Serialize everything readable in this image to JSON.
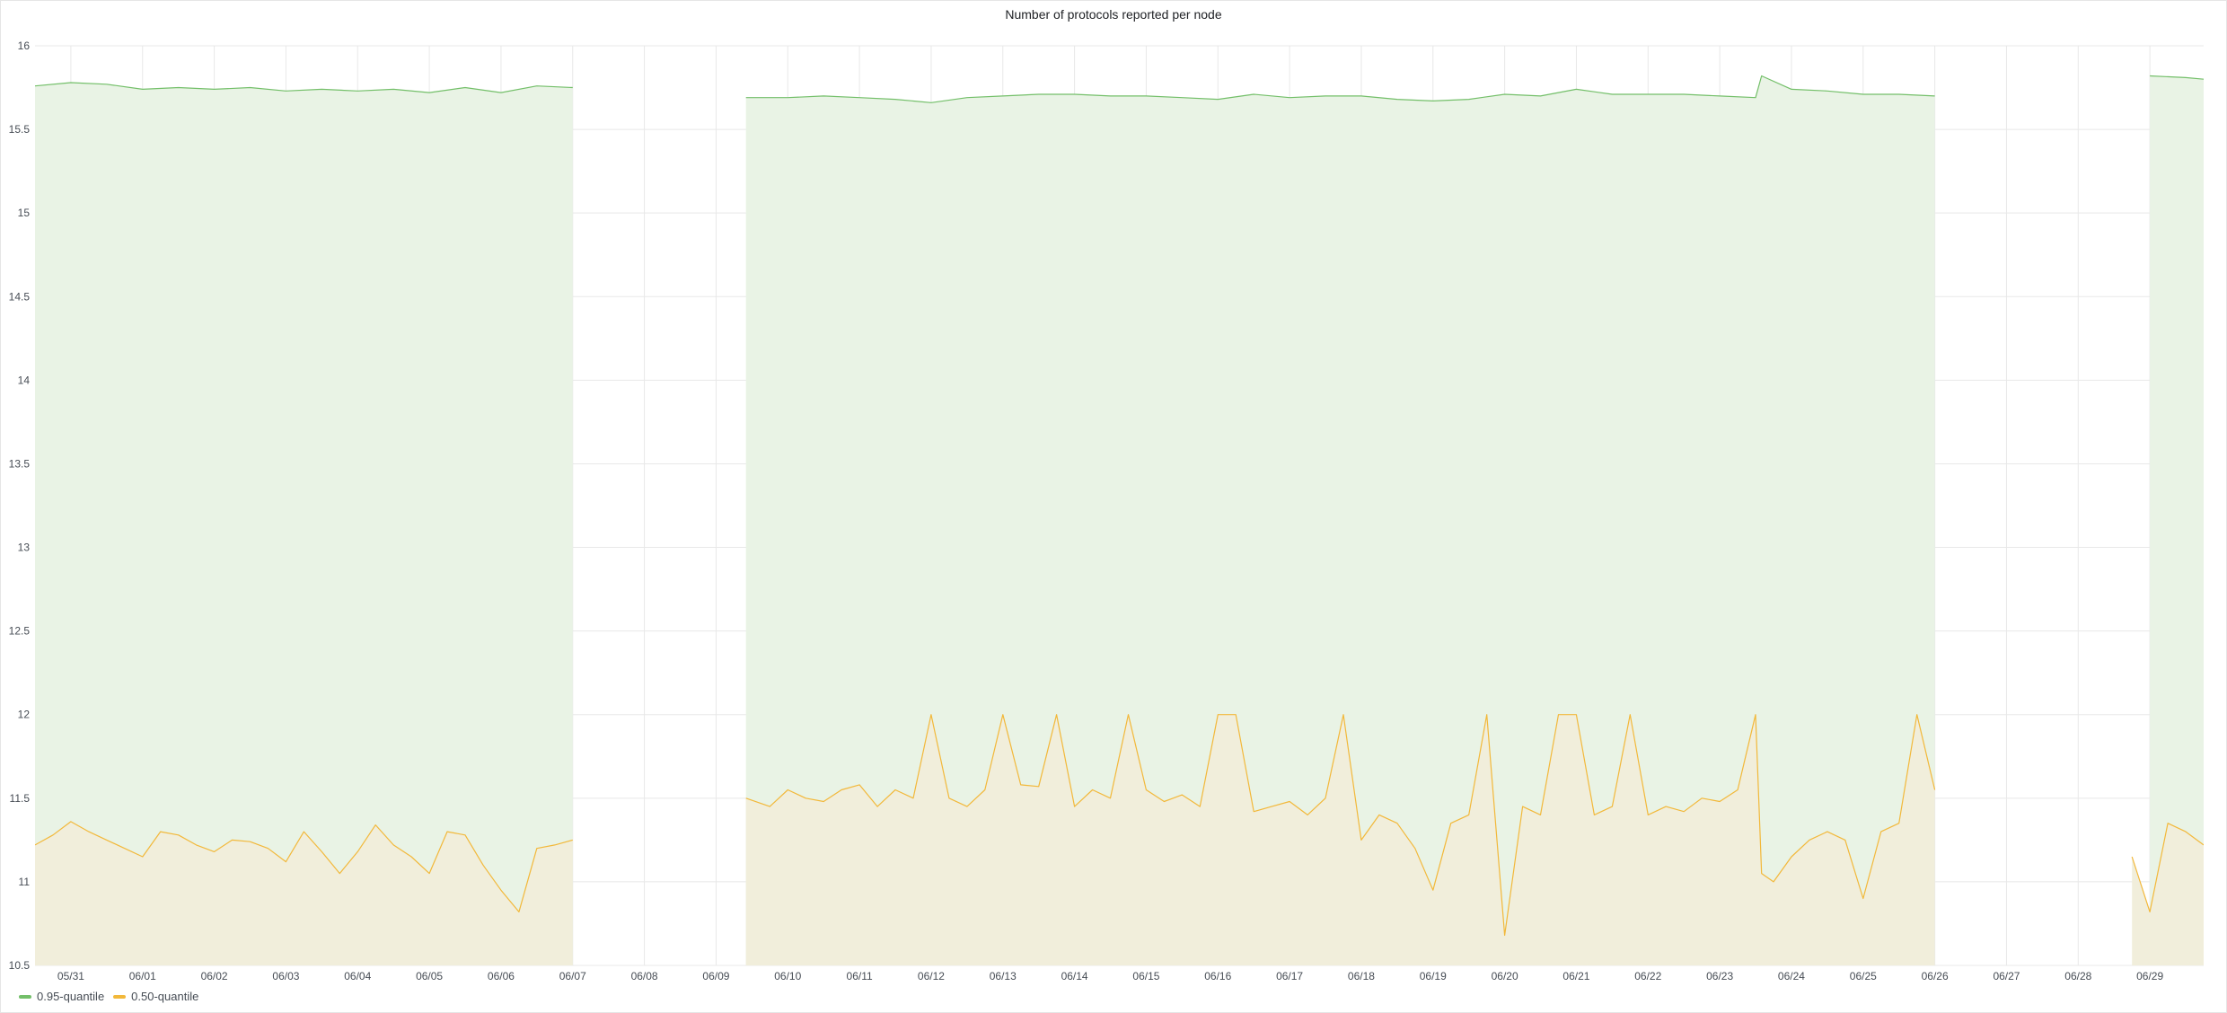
{
  "panel": {
    "title": "Number of protocols reported per node"
  },
  "colors": {
    "series_095": "#73bf69",
    "series_050": "#f2b83a",
    "fill_095": "#e9f3e5",
    "fill_050": "#f1eedb",
    "grid": "#e8e8e8",
    "axis_text": "#464c54"
  },
  "chart_data": {
    "type": "area",
    "title": "Number of protocols reported per node",
    "xlabel": "",
    "ylabel": "",
    "x_start": "05/30 12:00",
    "x_end": "06/29 18:00",
    "ylim": [
      10.5,
      16
    ],
    "y_ticks": [
      "10.5",
      "11",
      "11.5",
      "12",
      "12.5",
      "13",
      "13.5",
      "14",
      "14.5",
      "15",
      "15.5",
      "16"
    ],
    "x_tick_labels": [
      "05/31",
      "06/01",
      "06/02",
      "06/03",
      "06/04",
      "06/05",
      "06/06",
      "06/07",
      "06/08",
      "06/09",
      "06/10",
      "06/11",
      "06/12",
      "06/13",
      "06/14",
      "06/15",
      "06/16",
      "06/17",
      "06/18",
      "06/19",
      "06/20",
      "06/21",
      "06/22",
      "06/23",
      "06/24",
      "06/25",
      "06/26",
      "06/27",
      "06/28",
      "06/29"
    ],
    "grid": true,
    "legend_position": "bottom-left",
    "data_gaps": [
      [
        "06/07 00:00",
        "06/09 10:00"
      ],
      [
        "06/28 12:00",
        "06/28 12:00"
      ]
    ],
    "series": [
      {
        "name": "0.95-quantile",
        "color": "#73bf69",
        "fill": true,
        "points": [
          [
            "05/30 12:00",
            15.76
          ],
          [
            "05/31 00:00",
            15.78
          ],
          [
            "05/31 12:00",
            15.77
          ],
          [
            "06/01 00:00",
            15.74
          ],
          [
            "06/01 12:00",
            15.75
          ],
          [
            "06/02 00:00",
            15.74
          ],
          [
            "06/02 12:00",
            15.75
          ],
          [
            "06/03 00:00",
            15.73
          ],
          [
            "06/03 12:00",
            15.74
          ],
          [
            "06/04 00:00",
            15.73
          ],
          [
            "06/04 12:00",
            15.74
          ],
          [
            "06/05 00:00",
            15.72
          ],
          [
            "06/05 12:00",
            15.75
          ],
          [
            "06/06 00:00",
            15.72
          ],
          [
            "06/06 12:00",
            15.76
          ],
          [
            "06/07 00:00",
            15.75
          ],
          [
            "06/09 10:00",
            15.69
          ],
          [
            "06/10 00:00",
            15.69
          ],
          [
            "06/10 12:00",
            15.7
          ],
          [
            "06/11 00:00",
            15.69
          ],
          [
            "06/11 12:00",
            15.68
          ],
          [
            "06/12 00:00",
            15.66
          ],
          [
            "06/12 12:00",
            15.69
          ],
          [
            "06/13 00:00",
            15.7
          ],
          [
            "06/13 12:00",
            15.71
          ],
          [
            "06/14 00:00",
            15.71
          ],
          [
            "06/14 12:00",
            15.7
          ],
          [
            "06/15 00:00",
            15.7
          ],
          [
            "06/15 12:00",
            15.69
          ],
          [
            "06/16 00:00",
            15.68
          ],
          [
            "06/16 12:00",
            15.71
          ],
          [
            "06/17 00:00",
            15.69
          ],
          [
            "06/17 12:00",
            15.7
          ],
          [
            "06/18 00:00",
            15.7
          ],
          [
            "06/18 12:00",
            15.68
          ],
          [
            "06/19 00:00",
            15.67
          ],
          [
            "06/19 12:00",
            15.68
          ],
          [
            "06/20 00:00",
            15.71
          ],
          [
            "06/20 12:00",
            15.7
          ],
          [
            "06/21 00:00",
            15.74
          ],
          [
            "06/21 12:00",
            15.71
          ],
          [
            "06/22 00:00",
            15.71
          ],
          [
            "06/22 12:00",
            15.71
          ],
          [
            "06/23 00:00",
            15.7
          ],
          [
            "06/23 12:00",
            15.69
          ],
          [
            "06/23 14:00",
            15.82
          ],
          [
            "06/24 00:00",
            15.74
          ],
          [
            "06/24 12:00",
            15.73
          ],
          [
            "06/25 00:00",
            15.71
          ],
          [
            "06/25 12:00",
            15.71
          ],
          [
            "06/26 00:00",
            15.7
          ],
          [
            "06/28 12:00",
            15.88
          ],
          [
            "06/29 00:00",
            15.82
          ],
          [
            "06/29 12:00",
            15.81
          ],
          [
            "06/29 18:00",
            15.8
          ]
        ]
      },
      {
        "name": "0.50-quantile",
        "color": "#f2b83a",
        "fill": true,
        "points": [
          [
            "05/30 12:00",
            11.22
          ],
          [
            "05/30 18:00",
            11.28
          ],
          [
            "05/31 00:00",
            11.36
          ],
          [
            "05/31 06:00",
            11.3
          ],
          [
            "05/31 12:00",
            11.25
          ],
          [
            "05/31 18:00",
            11.2
          ],
          [
            "06/01 00:00",
            11.15
          ],
          [
            "06/01 06:00",
            11.3
          ],
          [
            "06/01 12:00",
            11.28
          ],
          [
            "06/01 18:00",
            11.22
          ],
          [
            "06/02 00:00",
            11.18
          ],
          [
            "06/02 06:00",
            11.25
          ],
          [
            "06/02 12:00",
            11.24
          ],
          [
            "06/02 18:00",
            11.2
          ],
          [
            "06/03 00:00",
            11.12
          ],
          [
            "06/03 06:00",
            11.3
          ],
          [
            "06/03 12:00",
            11.18
          ],
          [
            "06/03 18:00",
            11.05
          ],
          [
            "06/04 00:00",
            11.18
          ],
          [
            "06/04 06:00",
            11.34
          ],
          [
            "06/04 12:00",
            11.22
          ],
          [
            "06/04 18:00",
            11.15
          ],
          [
            "06/05 00:00",
            11.05
          ],
          [
            "06/05 06:00",
            11.3
          ],
          [
            "06/05 12:00",
            11.28
          ],
          [
            "06/05 18:00",
            11.1
          ],
          [
            "06/06 00:00",
            10.95
          ],
          [
            "06/06 06:00",
            10.82
          ],
          [
            "06/06 12:00",
            11.2
          ],
          [
            "06/06 18:00",
            11.22
          ],
          [
            "06/07 00:00",
            11.25
          ],
          [
            "06/09 10:00",
            11.5
          ],
          [
            "06/09 18:00",
            11.45
          ],
          [
            "06/10 00:00",
            11.55
          ],
          [
            "06/10 06:00",
            11.5
          ],
          [
            "06/10 12:00",
            11.48
          ],
          [
            "06/10 18:00",
            11.55
          ],
          [
            "06/11 00:00",
            11.58
          ],
          [
            "06/11 06:00",
            11.45
          ],
          [
            "06/11 12:00",
            11.55
          ],
          [
            "06/11 18:00",
            11.5
          ],
          [
            "06/12 00:00",
            12.0
          ],
          [
            "06/12 06:00",
            11.5
          ],
          [
            "06/12 12:00",
            11.45
          ],
          [
            "06/12 18:00",
            11.55
          ],
          [
            "06/13 00:00",
            12.0
          ],
          [
            "06/13 06:00",
            11.58
          ],
          [
            "06/13 12:00",
            11.57
          ],
          [
            "06/13 18:00",
            12.0
          ],
          [
            "06/14 00:00",
            11.45
          ],
          [
            "06/14 06:00",
            11.55
          ],
          [
            "06/14 12:00",
            11.5
          ],
          [
            "06/14 18:00",
            12.0
          ],
          [
            "06/15 00:00",
            11.55
          ],
          [
            "06/15 06:00",
            11.48
          ],
          [
            "06/15 12:00",
            11.52
          ],
          [
            "06/15 18:00",
            11.45
          ],
          [
            "06/16 00:00",
            12.0
          ],
          [
            "06/16 06:00",
            12.0
          ],
          [
            "06/16 12:00",
            11.42
          ],
          [
            "06/16 18:00",
            11.45
          ],
          [
            "06/17 00:00",
            11.48
          ],
          [
            "06/17 06:00",
            11.4
          ],
          [
            "06/17 12:00",
            11.5
          ],
          [
            "06/17 18:00",
            12.0
          ],
          [
            "06/18 00:00",
            11.25
          ],
          [
            "06/18 06:00",
            11.4
          ],
          [
            "06/18 12:00",
            11.35
          ],
          [
            "06/18 18:00",
            11.2
          ],
          [
            "06/19 00:00",
            10.95
          ],
          [
            "06/19 06:00",
            11.35
          ],
          [
            "06/19 12:00",
            11.4
          ],
          [
            "06/19 18:00",
            12.0
          ],
          [
            "06/20 00:00",
            10.68
          ],
          [
            "06/20 06:00",
            11.45
          ],
          [
            "06/20 12:00",
            11.4
          ],
          [
            "06/20 18:00",
            12.0
          ],
          [
            "06/21 00:00",
            12.0
          ],
          [
            "06/21 06:00",
            11.4
          ],
          [
            "06/21 12:00",
            11.45
          ],
          [
            "06/21 18:00",
            12.0
          ],
          [
            "06/22 00:00",
            11.4
          ],
          [
            "06/22 06:00",
            11.45
          ],
          [
            "06/22 12:00",
            11.42
          ],
          [
            "06/22 18:00",
            11.5
          ],
          [
            "06/23 00:00",
            11.48
          ],
          [
            "06/23 06:00",
            11.55
          ],
          [
            "06/23 12:00",
            12.0
          ],
          [
            "06/23 14:00",
            11.05
          ],
          [
            "06/23 18:00",
            11.0
          ],
          [
            "06/24 00:00",
            11.15
          ],
          [
            "06/24 06:00",
            11.25
          ],
          [
            "06/24 12:00",
            11.3
          ],
          [
            "06/24 18:00",
            11.25
          ],
          [
            "06/25 00:00",
            10.9
          ],
          [
            "06/25 06:00",
            11.3
          ],
          [
            "06/25 12:00",
            11.35
          ],
          [
            "06/25 18:00",
            12.0
          ],
          [
            "06/26 00:00",
            11.55
          ],
          [
            "06/28 12:00",
            11.2
          ],
          [
            "06/28 18:00",
            11.15
          ],
          [
            "06/29 00:00",
            10.82
          ],
          [
            "06/29 06:00",
            11.35
          ],
          [
            "06/29 12:00",
            11.3
          ],
          [
            "06/29 18:00",
            11.22
          ]
        ]
      }
    ]
  }
}
